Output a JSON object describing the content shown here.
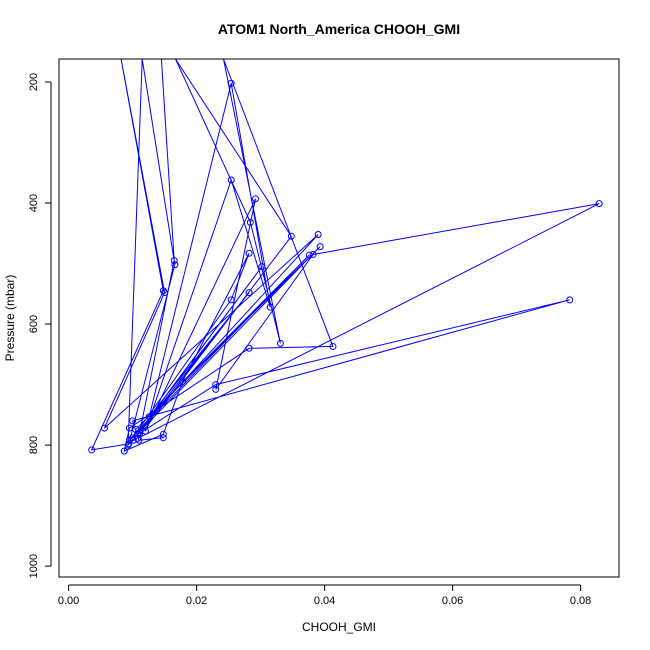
{
  "chart_data": {
    "type": "line",
    "title": "ATOM1 North_America CHOOH_GMI",
    "xlabel": "CHOOH_GMI",
    "ylabel": "Pressure (mbar)",
    "xlim": [
      -0.0015,
      0.086
    ],
    "ylim": [
      1018,
      162
    ],
    "y_reversed": true,
    "grid": false,
    "x_ticks": [
      0.0,
      0.02,
      0.04,
      0.06,
      0.08
    ],
    "x_tick_labels": [
      "0.00",
      "0.02",
      "0.04",
      "0.06",
      "0.08"
    ],
    "y_ticks": [
      200,
      400,
      600,
      800,
      1000
    ],
    "y_tick_labels": [
      "200",
      "400",
      "600",
      "800",
      "1000"
    ],
    "series": [
      {
        "color": "#0000ff",
        "points": [
          [
            0.0145,
            162
          ],
          [
            0.0165,
            495
          ],
          [
            0.0111,
            780
          ],
          [
            0.0093,
            800
          ],
          [
            0.0115,
            162
          ],
          [
            0.0166,
            502
          ],
          [
            0.0094,
            798
          ],
          [
            0.0036,
            808
          ],
          [
            0.0148,
            545
          ],
          [
            0.0082,
            162
          ],
          [
            0.015,
            548
          ],
          [
            0.0056,
            772
          ],
          [
            0.039,
            452
          ],
          [
            0.0095,
            792
          ],
          [
            0.0376,
            486
          ],
          [
            0.0105,
            774
          ],
          [
            0.0393,
            472
          ],
          [
            0.0108,
            781
          ],
          [
            0.0302,
            505
          ],
          [
            0.0101,
            792
          ],
          [
            0.0282,
            548
          ],
          [
            0.0126,
            753
          ],
          [
            0.0254,
            202
          ],
          [
            0.0315,
            572
          ],
          [
            0.0254,
            362
          ],
          [
            0.012,
            777
          ],
          [
            0.0292,
            393
          ],
          [
            0.023,
            708
          ],
          [
            0.0382,
            485
          ],
          [
            0.0829,
            401
          ],
          [
            0.0108,
            789
          ],
          [
            0.0348,
            455
          ],
          [
            0.0167,
            162
          ],
          [
            0.0284,
            432
          ],
          [
            0.0331,
            632
          ],
          [
            0.0242,
            162
          ],
          [
            0.0413,
            637
          ],
          [
            0.0282,
            640
          ],
          [
            0.0095,
            772
          ],
          [
            0.0087,
            810
          ],
          [
            0.0148,
            782
          ],
          [
            0.0178,
            695
          ],
          [
            0.0282,
            483
          ],
          [
            0.0254,
            560
          ],
          [
            0.01,
            788
          ],
          [
            0.023,
            700
          ],
          [
            0.0783,
            560
          ],
          [
            0.01,
            760
          ],
          [
            0.011,
            792
          ],
          [
            0.0148,
            788
          ]
        ]
      }
    ]
  }
}
